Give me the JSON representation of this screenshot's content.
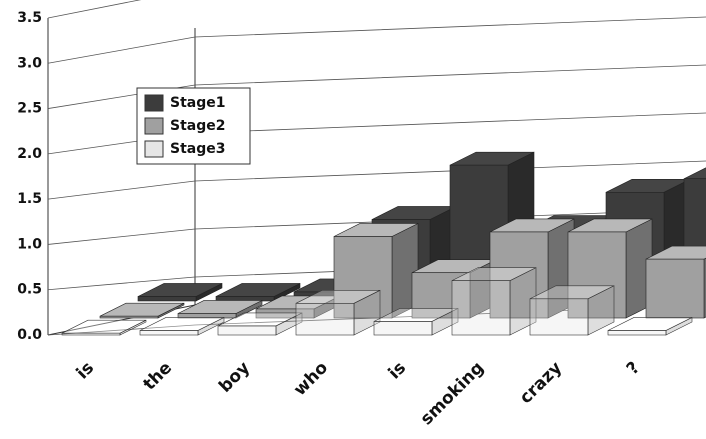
{
  "chart_data": {
    "type": "bar3d",
    "categories": [
      "is",
      "the",
      "boy",
      "who",
      "is",
      "smoking",
      "crazy",
      "?"
    ],
    "series": [
      {
        "name": "Stage1",
        "color": "#3c3c3c",
        "values": [
          0.05,
          0.05,
          0.1,
          0.9,
          1.5,
          0.8,
          1.2,
          1.35
        ]
      },
      {
        "name": "Stage2",
        "color": "#a0a0a0",
        "values": [
          0.02,
          0.05,
          0.1,
          0.9,
          0.5,
          0.95,
          0.95,
          0.65
        ]
      },
      {
        "name": "Stage3",
        "color": "#e6e6e6",
        "values": [
          0.02,
          0.05,
          0.1,
          0.35,
          0.15,
          0.6,
          0.4,
          0.05
        ]
      }
    ],
    "ylim": [
      0,
      3.5
    ],
    "yticks": [
      {
        "value": 0,
        "label": "0.0"
      },
      0.5,
      {
        "value": 1,
        "label": "1.0"
      },
      1.5,
      {
        "value": 2,
        "label": "2.0"
      },
      2.5,
      {
        "value": 3,
        "label": "3.0"
      },
      3.5
    ],
    "grid": true
  }
}
